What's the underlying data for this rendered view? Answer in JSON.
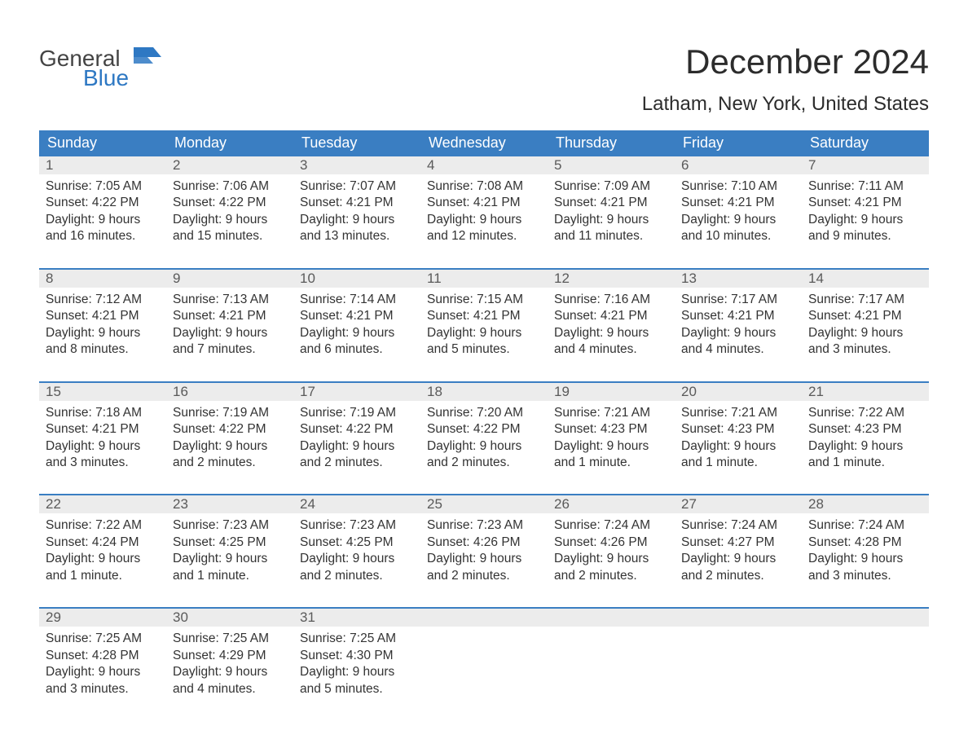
{
  "logo": {
    "top": "General",
    "bottom": "Blue",
    "top_color": "#444444",
    "bottom_color": "#2e78c3"
  },
  "title": "December 2024",
  "location": "Latham, New York, United States",
  "colors": {
    "header_bg": "#3a7ec2",
    "header_text": "#ffffff",
    "daynum_bg": "#ececec",
    "daynum_text": "#5a5a5a",
    "body_text": "#333333",
    "week_border": "#3a7ec2",
    "page_bg": "#ffffff"
  },
  "day_names": [
    "Sunday",
    "Monday",
    "Tuesday",
    "Wednesday",
    "Thursday",
    "Friday",
    "Saturday"
  ],
  "weeks": [
    [
      {
        "n": "1",
        "sr": "Sunrise: 7:05 AM",
        "ss": "Sunset: 4:22 PM",
        "d1": "Daylight: 9 hours",
        "d2": "and 16 minutes."
      },
      {
        "n": "2",
        "sr": "Sunrise: 7:06 AM",
        "ss": "Sunset: 4:22 PM",
        "d1": "Daylight: 9 hours",
        "d2": "and 15 minutes."
      },
      {
        "n": "3",
        "sr": "Sunrise: 7:07 AM",
        "ss": "Sunset: 4:21 PM",
        "d1": "Daylight: 9 hours",
        "d2": "and 13 minutes."
      },
      {
        "n": "4",
        "sr": "Sunrise: 7:08 AM",
        "ss": "Sunset: 4:21 PM",
        "d1": "Daylight: 9 hours",
        "d2": "and 12 minutes."
      },
      {
        "n": "5",
        "sr": "Sunrise: 7:09 AM",
        "ss": "Sunset: 4:21 PM",
        "d1": "Daylight: 9 hours",
        "d2": "and 11 minutes."
      },
      {
        "n": "6",
        "sr": "Sunrise: 7:10 AM",
        "ss": "Sunset: 4:21 PM",
        "d1": "Daylight: 9 hours",
        "d2": "and 10 minutes."
      },
      {
        "n": "7",
        "sr": "Sunrise: 7:11 AM",
        "ss": "Sunset: 4:21 PM",
        "d1": "Daylight: 9 hours",
        "d2": "and 9 minutes."
      }
    ],
    [
      {
        "n": "8",
        "sr": "Sunrise: 7:12 AM",
        "ss": "Sunset: 4:21 PM",
        "d1": "Daylight: 9 hours",
        "d2": "and 8 minutes."
      },
      {
        "n": "9",
        "sr": "Sunrise: 7:13 AM",
        "ss": "Sunset: 4:21 PM",
        "d1": "Daylight: 9 hours",
        "d2": "and 7 minutes."
      },
      {
        "n": "10",
        "sr": "Sunrise: 7:14 AM",
        "ss": "Sunset: 4:21 PM",
        "d1": "Daylight: 9 hours",
        "d2": "and 6 minutes."
      },
      {
        "n": "11",
        "sr": "Sunrise: 7:15 AM",
        "ss": "Sunset: 4:21 PM",
        "d1": "Daylight: 9 hours",
        "d2": "and 5 minutes."
      },
      {
        "n": "12",
        "sr": "Sunrise: 7:16 AM",
        "ss": "Sunset: 4:21 PM",
        "d1": "Daylight: 9 hours",
        "d2": "and 4 minutes."
      },
      {
        "n": "13",
        "sr": "Sunrise: 7:17 AM",
        "ss": "Sunset: 4:21 PM",
        "d1": "Daylight: 9 hours",
        "d2": "and 4 minutes."
      },
      {
        "n": "14",
        "sr": "Sunrise: 7:17 AM",
        "ss": "Sunset: 4:21 PM",
        "d1": "Daylight: 9 hours",
        "d2": "and 3 minutes."
      }
    ],
    [
      {
        "n": "15",
        "sr": "Sunrise: 7:18 AM",
        "ss": "Sunset: 4:21 PM",
        "d1": "Daylight: 9 hours",
        "d2": "and 3 minutes."
      },
      {
        "n": "16",
        "sr": "Sunrise: 7:19 AM",
        "ss": "Sunset: 4:22 PM",
        "d1": "Daylight: 9 hours",
        "d2": "and 2 minutes."
      },
      {
        "n": "17",
        "sr": "Sunrise: 7:19 AM",
        "ss": "Sunset: 4:22 PM",
        "d1": "Daylight: 9 hours",
        "d2": "and 2 minutes."
      },
      {
        "n": "18",
        "sr": "Sunrise: 7:20 AM",
        "ss": "Sunset: 4:22 PM",
        "d1": "Daylight: 9 hours",
        "d2": "and 2 minutes."
      },
      {
        "n": "19",
        "sr": "Sunrise: 7:21 AM",
        "ss": "Sunset: 4:23 PM",
        "d1": "Daylight: 9 hours",
        "d2": "and 1 minute."
      },
      {
        "n": "20",
        "sr": "Sunrise: 7:21 AM",
        "ss": "Sunset: 4:23 PM",
        "d1": "Daylight: 9 hours",
        "d2": "and 1 minute."
      },
      {
        "n": "21",
        "sr": "Sunrise: 7:22 AM",
        "ss": "Sunset: 4:23 PM",
        "d1": "Daylight: 9 hours",
        "d2": "and 1 minute."
      }
    ],
    [
      {
        "n": "22",
        "sr": "Sunrise: 7:22 AM",
        "ss": "Sunset: 4:24 PM",
        "d1": "Daylight: 9 hours",
        "d2": "and 1 minute."
      },
      {
        "n": "23",
        "sr": "Sunrise: 7:23 AM",
        "ss": "Sunset: 4:25 PM",
        "d1": "Daylight: 9 hours",
        "d2": "and 1 minute."
      },
      {
        "n": "24",
        "sr": "Sunrise: 7:23 AM",
        "ss": "Sunset: 4:25 PM",
        "d1": "Daylight: 9 hours",
        "d2": "and 2 minutes."
      },
      {
        "n": "25",
        "sr": "Sunrise: 7:23 AM",
        "ss": "Sunset: 4:26 PM",
        "d1": "Daylight: 9 hours",
        "d2": "and 2 minutes."
      },
      {
        "n": "26",
        "sr": "Sunrise: 7:24 AM",
        "ss": "Sunset: 4:26 PM",
        "d1": "Daylight: 9 hours",
        "d2": "and 2 minutes."
      },
      {
        "n": "27",
        "sr": "Sunrise: 7:24 AM",
        "ss": "Sunset: 4:27 PM",
        "d1": "Daylight: 9 hours",
        "d2": "and 2 minutes."
      },
      {
        "n": "28",
        "sr": "Sunrise: 7:24 AM",
        "ss": "Sunset: 4:28 PM",
        "d1": "Daylight: 9 hours",
        "d2": "and 3 minutes."
      }
    ],
    [
      {
        "n": "29",
        "sr": "Sunrise: 7:25 AM",
        "ss": "Sunset: 4:28 PM",
        "d1": "Daylight: 9 hours",
        "d2": "and 3 minutes."
      },
      {
        "n": "30",
        "sr": "Sunrise: 7:25 AM",
        "ss": "Sunset: 4:29 PM",
        "d1": "Daylight: 9 hours",
        "d2": "and 4 minutes."
      },
      {
        "n": "31",
        "sr": "Sunrise: 7:25 AM",
        "ss": "Sunset: 4:30 PM",
        "d1": "Daylight: 9 hours",
        "d2": "and 5 minutes."
      },
      null,
      null,
      null,
      null
    ]
  ]
}
